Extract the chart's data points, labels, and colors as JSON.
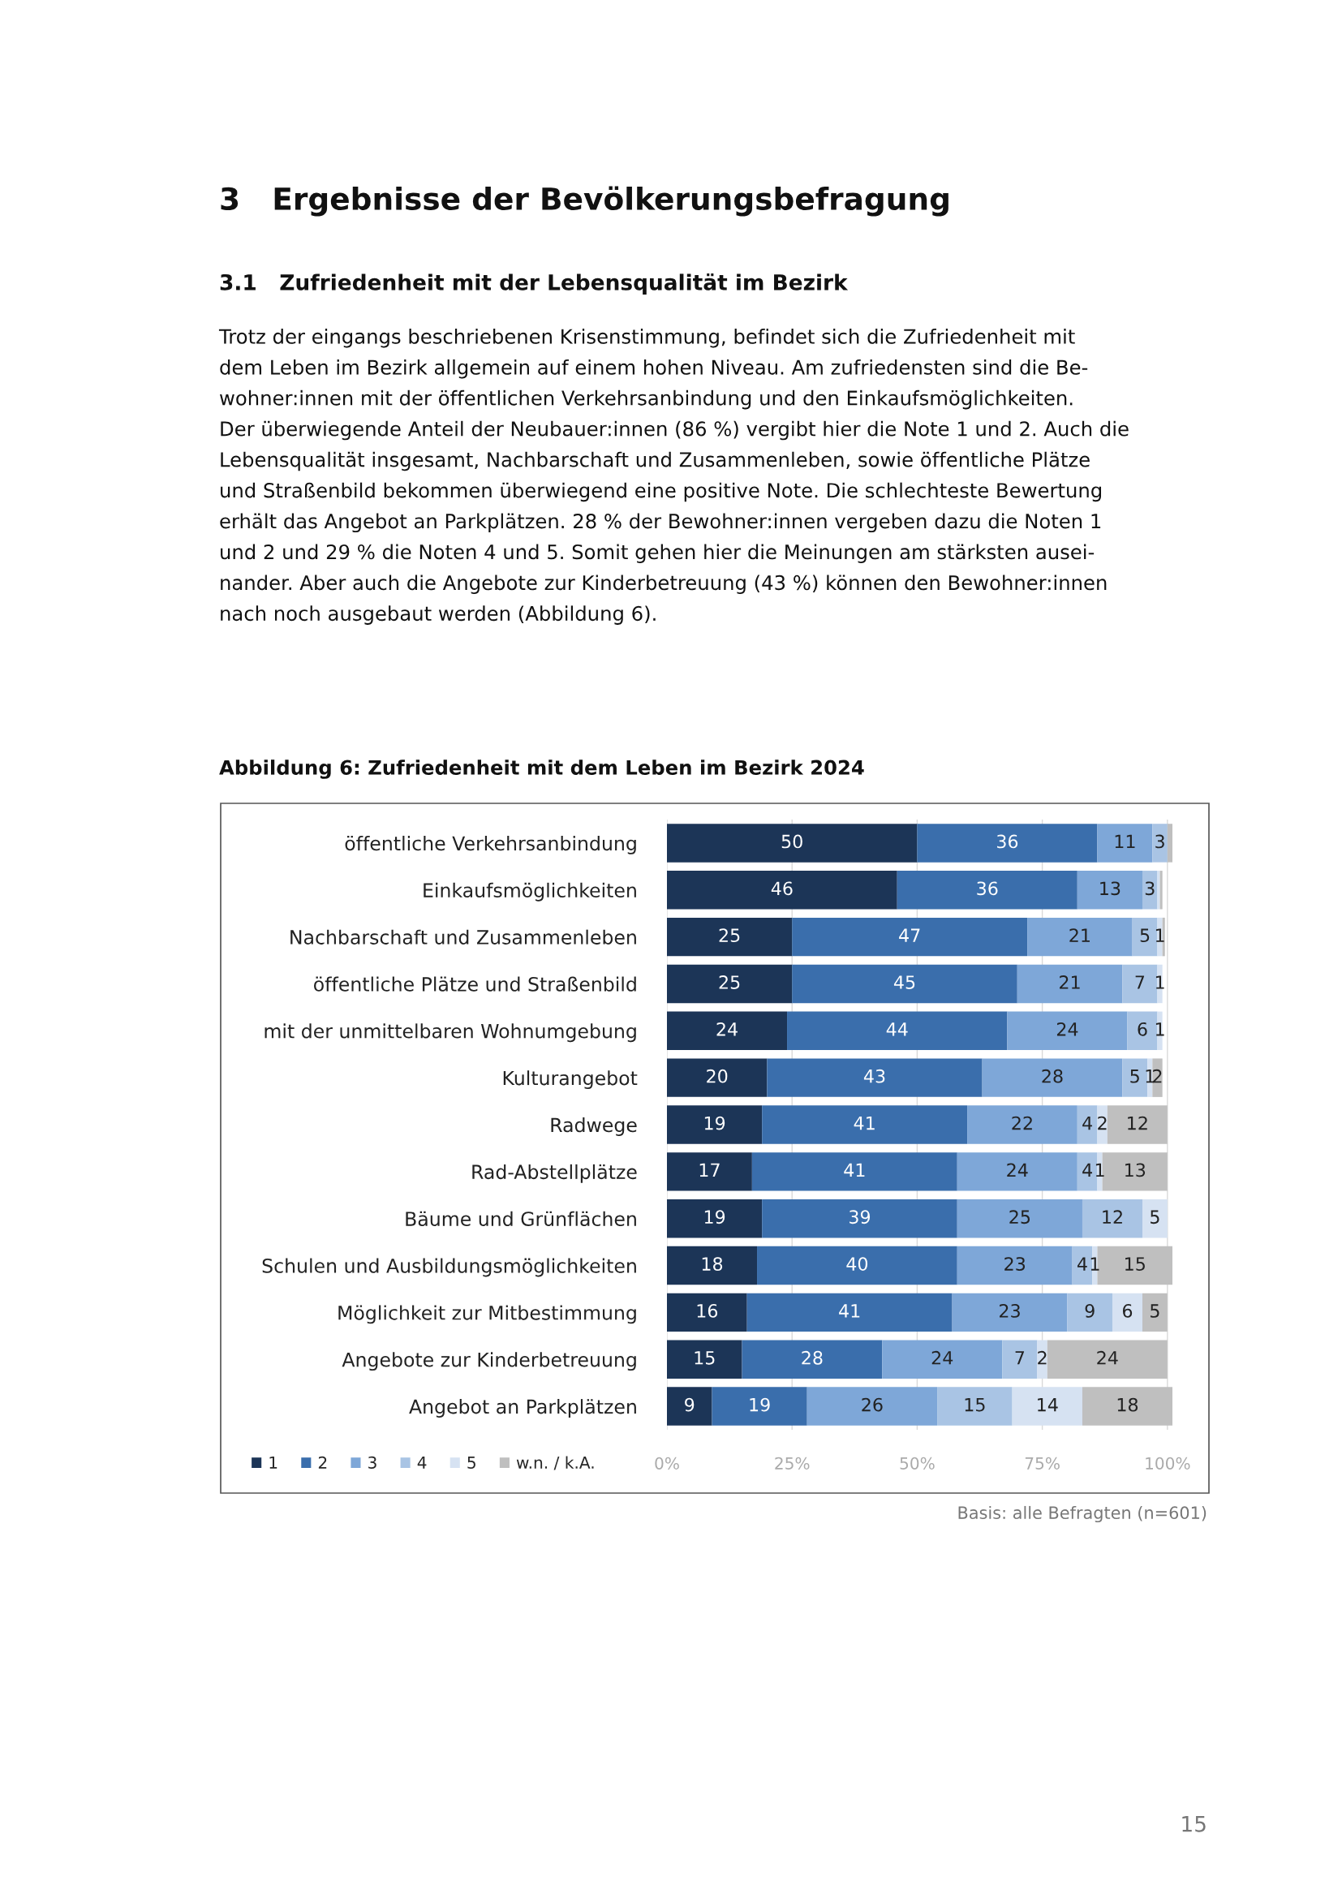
{
  "chart_data": {
    "type": "bar",
    "orientation": "horizontal",
    "stacked": true,
    "title": "3   Ergebnisse der Bevölkerungsbefragung",
    "subtitle": "3.1   Zufriedenheit mit der Lebensqualität im Bezirk",
    "annotations": [
      "Trotz der eingangs beschriebenen Krisenstimmung, befindet sich die Zufriedenheit mit\ndem Leben im Bezirk allgemein auf einem hohen Niveau. Am zufriedensten sind die Be-\nwohner:innen mit der öffentlichen Verkehrsanbindung und den Einkaufsmöglichkeiten.\nDer überwiegende Anteil der Neubauer:innen (86 %) vergibt hier die Note 1 und 2. Auch die\nLebensqualität insgesamt, Nachbarschaft und Zusammenleben, sowie öffentliche Plätze\nund Straßenbild bekommen überwiegend eine positive Note. Die schlechteste Bewertung\nerhält das Angebot an Parkplätzen. 28 % der Bewohner:innen vergeben dazu die Noten 1\nund 2 und 29 % die Noten 4 und 5. Somit gehen hier die Meinungen am stärksten ausei-\nnander. Aber auch die Angebote zur Kinderbetreuung (43 %) können den Bewohner:innen\nnach noch ausgebaut werden (Abbildung 6).",
      "Abbildung 6: Zufriedenheit mit dem Leben im Bezirk 2024",
      "Basis: alle Befragten (n=601)",
      "15"
    ],
    "categories": [
      "öffentliche Verkehrsanbindung",
      "Einkaufsmöglichkeiten",
      "Nachbarschaft und Zusammenleben",
      "öffentliche Plätze und Straßenbild",
      "mit der unmittelbaren Wohnumgebung",
      "Kulturangebot",
      "Radwege",
      "Rad-Abstellplätze",
      "Bäume und Grünflächen",
      "Schulen und Ausbildungsmöglichkeiten",
      "Möglichkeit zur Mitbestimmung",
      "Angebote zur Kinderbetreuung",
      "Angebot an Parkplätzen"
    ],
    "series": [
      {
        "name": "1",
        "color": "#1c3557",
        "values": [
          50,
          46,
          25,
          25,
          24,
          20,
          19,
          17,
          19,
          18,
          16,
          15,
          9
        ],
        "value_labels": [
          "50",
          "46",
          "25",
          "25",
          "24",
          "20",
          "19",
          "17",
          "19",
          "18",
          "16",
          "15",
          "9"
        ]
      },
      {
        "name": "2",
        "color": "#3a6eac",
        "values": [
          36,
          36,
          47,
          45,
          44,
          43,
          41,
          41,
          39,
          40,
          41,
          28,
          19
        ],
        "value_labels": [
          "36",
          "36",
          "47",
          "45",
          "44",
          "43",
          "41",
          "41",
          "39",
          "40",
          "41",
          "28",
          "19"
        ]
      },
      {
        "name": "3",
        "color": "#7ea7d8",
        "values": [
          11,
          13,
          21,
          21,
          24,
          28,
          22,
          24,
          25,
          23,
          23,
          24,
          26
        ],
        "value_labels": [
          "11",
          "13",
          "21",
          "21",
          "24",
          "28",
          "22",
          "24",
          "25",
          "23",
          "23",
          "24",
          "26"
        ]
      },
      {
        "name": "4",
        "color": "#a9c4e4",
        "values": [
          3,
          3,
          5,
          7,
          6,
          5,
          4,
          4,
          12,
          4,
          9,
          7,
          15
        ],
        "value_labels": [
          "3",
          "3",
          "5",
          "7",
          "6",
          "5",
          "4",
          "4",
          "12",
          "4",
          "9",
          "7",
          "15"
        ]
      },
      {
        "name": "5",
        "color": "#d6e2f2",
        "values": [
          null,
          0.5,
          1,
          1,
          1,
          1,
          2,
          1,
          5,
          1,
          6,
          2,
          14
        ],
        "value_labels": [
          null,
          null,
          "1",
          "1",
          "1",
          "1",
          "2",
          "1",
          "5",
          "1",
          "6",
          "2",
          "14"
        ]
      },
      {
        "name": "w.n. / k.A.",
        "color": "#bfbfbf",
        "values": [
          1,
          0.5,
          0.5,
          null,
          null,
          2,
          12,
          13,
          null,
          15,
          5,
          24,
          18
        ],
        "value_labels": [
          null,
          null,
          null,
          null,
          null,
          "2",
          "12",
          "13",
          null,
          "15",
          "5",
          "24",
          "18"
        ]
      }
    ],
    "xlim": [
      0,
      101
    ],
    "xticks": [
      {
        "value": 0,
        "label": "0%"
      },
      {
        "value": 25,
        "label": "25%"
      },
      {
        "value": 50,
        "label": "50%"
      },
      {
        "value": 75,
        "label": "75%"
      },
      {
        "value": 100,
        "label": "100%"
      }
    ],
    "grid": "x",
    "legend": "bottom left"
  }
}
